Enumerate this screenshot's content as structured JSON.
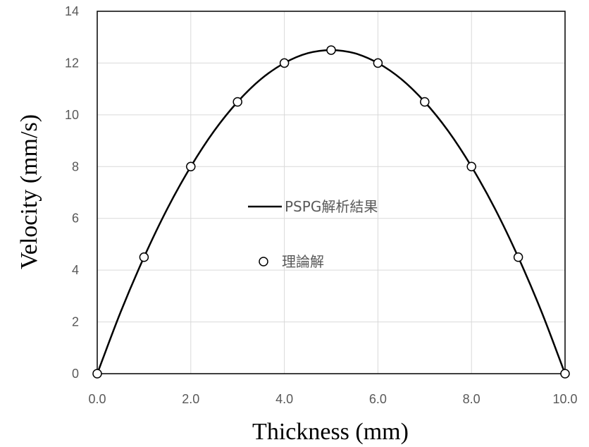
{
  "chart_data": {
    "type": "line",
    "xlabel": "Thickness (mm)",
    "ylabel": "Velocity (mm/s)",
    "xlim": [
      0,
      10
    ],
    "ylim": [
      0,
      14
    ],
    "xticks": [
      "0.0",
      "2.0",
      "4.0",
      "6.0",
      "8.0",
      "10.0"
    ],
    "yticks": [
      "0",
      "2",
      "4",
      "6",
      "8",
      "10",
      "12",
      "14"
    ],
    "grid": true,
    "legend_placement": "center",
    "series": [
      {
        "name": "PSPG解析結果",
        "style": "line",
        "color": "#000000",
        "x": [
          0,
          0.5,
          1,
          1.5,
          2,
          2.5,
          3,
          3.5,
          4,
          4.5,
          5,
          5.5,
          6,
          6.5,
          7,
          7.5,
          8,
          8.5,
          9,
          9.5,
          10
        ],
        "y": [
          0,
          2.38,
          4.5,
          6.38,
          8.0,
          9.38,
          10.5,
          11.38,
          12.0,
          12.38,
          12.5,
          12.38,
          12.0,
          11.38,
          10.5,
          9.38,
          8.0,
          6.38,
          4.5,
          2.38,
          0
        ]
      },
      {
        "name": "理論解",
        "style": "marker",
        "color": "#000000",
        "x": [
          0,
          1,
          2,
          3,
          4,
          5,
          6,
          7,
          8,
          9,
          10
        ],
        "y": [
          0,
          4.5,
          8.0,
          10.5,
          12.0,
          12.5,
          12.0,
          10.5,
          8.0,
          4.5,
          0
        ]
      }
    ]
  }
}
